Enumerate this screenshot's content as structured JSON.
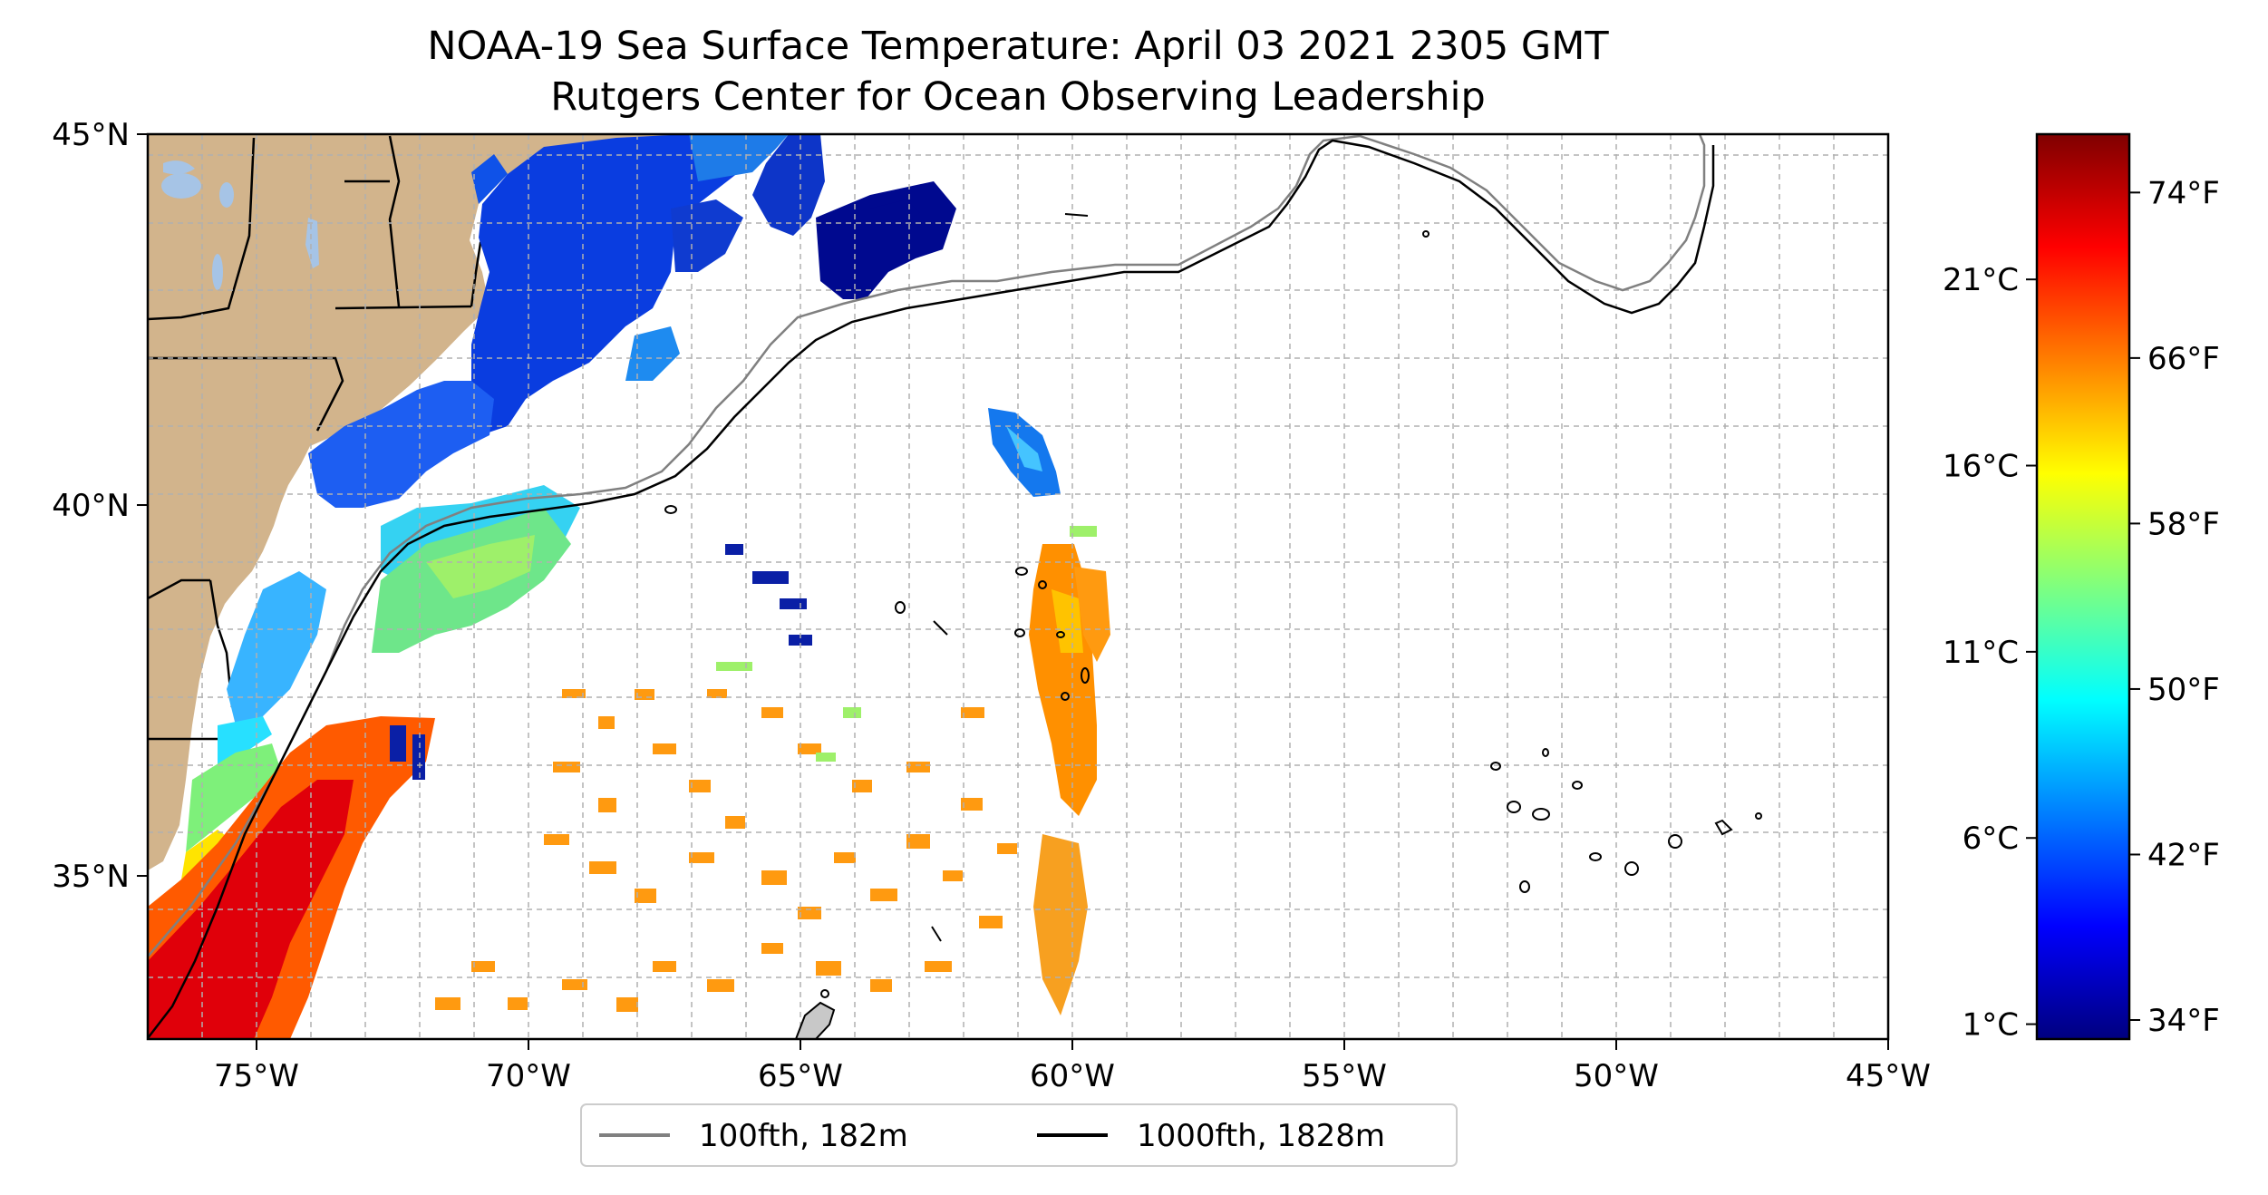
{
  "title": {
    "line1": "NOAA-19 Sea Surface Temperature: April 03 2021 2305 GMT",
    "line2": "Rutgers Center for Ocean Observing Leadership"
  },
  "map": {
    "projection": "plate carree",
    "lon_range": [
      -77,
      -45
    ],
    "lat_range": [
      32.8,
      45
    ],
    "grid": true,
    "colors": {
      "land": "#d2b48c",
      "lake": "#a6c4e6",
      "ocean_nodata": "#ffffff",
      "gridline": "#b0b0b0"
    },
    "lon_ticks": [
      {
        "value": -75,
        "label": "75°W"
      },
      {
        "value": -70,
        "label": "70°W"
      },
      {
        "value": -65,
        "label": "65°W"
      },
      {
        "value": -60,
        "label": "60°W"
      },
      {
        "value": -55,
        "label": "55°W"
      },
      {
        "value": -50,
        "label": "50°W"
      },
      {
        "value": -45,
        "label": "45°W"
      }
    ],
    "lat_ticks": [
      {
        "value": 45,
        "label": "45°N"
      },
      {
        "value": 40,
        "label": "40°N"
      },
      {
        "value": 35,
        "label": "35°N"
      }
    ]
  },
  "colorbar": {
    "colormap": "jet",
    "stops": [
      "#00007f",
      "#0000ff",
      "#007fff",
      "#00ffff",
      "#7fff7f",
      "#ffff00",
      "#ff7f00",
      "#ff0000",
      "#7f0000"
    ],
    "range_c": [
      0.6,
      24.9
    ],
    "celsius_ticks": [
      {
        "value": 1,
        "label": "1°C"
      },
      {
        "value": 6,
        "label": "6°C"
      },
      {
        "value": 11,
        "label": "11°C"
      },
      {
        "value": 16,
        "label": "16°C"
      },
      {
        "value": 21,
        "label": "21°C"
      }
    ],
    "fahrenheit_ticks": [
      {
        "value": 34,
        "label": "34°F"
      },
      {
        "value": 42,
        "label": "42°F"
      },
      {
        "value": 50,
        "label": "50°F"
      },
      {
        "value": 58,
        "label": "58°F"
      },
      {
        "value": 66,
        "label": "66°F"
      },
      {
        "value": 74,
        "label": "74°F"
      }
    ]
  },
  "legend": {
    "items": [
      {
        "label": "100fth, 182m",
        "color": "#808080"
      },
      {
        "label": "1000fth, 1828m",
        "color": "#000000"
      }
    ]
  }
}
